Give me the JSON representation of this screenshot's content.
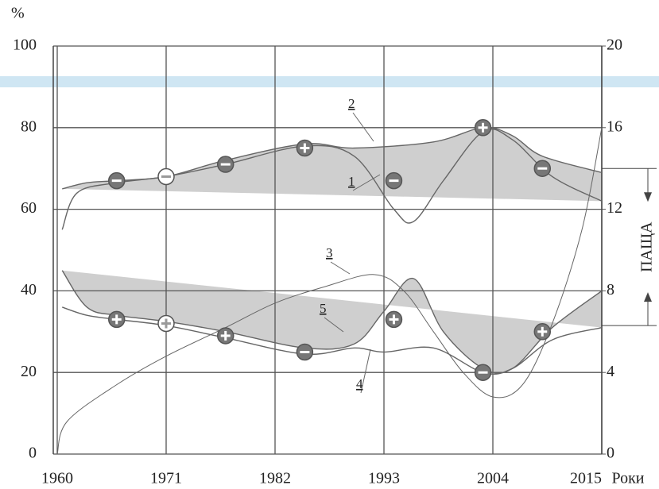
{
  "chart_data": {
    "type": "line",
    "ylabel": "%",
    "xlabel": "Роки",
    "xlim": [
      1960,
      2015
    ],
    "xticks": [
      1960,
      1971,
      1982,
      1993,
      2004,
      2015
    ],
    "ylim": [
      0,
      100
    ],
    "yticks": [
      0,
      20,
      40,
      60,
      80,
      100
    ],
    "y2lim": [
      0,
      20
    ],
    "y2ticks": [
      0,
      4,
      8,
      12,
      16,
      20
    ],
    "grid": true,
    "line_color": "#666666",
    "fill_color": "#cfcfcf",
    "series": [
      {
        "name": "1",
        "x": [
          1960.5,
          1962,
          1966,
          1971,
          1977,
          1985,
          1990,
          1994,
          1996,
          1999,
          2003,
          2006,
          2010,
          2015
        ],
        "values": [
          55,
          64,
          66.5,
          68,
          71,
          75.5,
          73,
          60,
          57,
          67,
          79,
          77,
          68,
          62
        ]
      },
      {
        "name": "2",
        "x": [
          1960.5,
          1963,
          1966,
          1971,
          1977,
          1985,
          1990,
          1998,
          2003,
          2006,
          2009,
          2015
        ],
        "values": [
          65,
          66.5,
          67,
          68,
          72,
          76,
          75,
          76.5,
          80,
          78,
          73,
          69
        ],
        "fill_to": 0
      },
      {
        "name": "3",
        "x": [
          1960,
          1961,
          1966,
          1971,
          1977,
          1982,
          1987,
          1992,
          1995,
          1998,
          2001,
          2004,
          2007,
          2010,
          2013,
          2015
        ],
        "values": [
          0,
          8,
          17,
          24,
          31,
          37,
          41,
          44,
          40,
          30,
          20,
          14,
          17,
          32,
          55,
          80
        ]
      },
      {
        "name": "4",
        "x": [
          1960.5,
          1963,
          1966,
          1971,
          1977,
          1985,
          1990,
          1993,
          1998,
          2003,
          2006,
          2010,
          2015
        ],
        "values": [
          36,
          34,
          33,
          31.5,
          28.5,
          24.5,
          26,
          25,
          26,
          20,
          21,
          28,
          31
        ]
      },
      {
        "name": "5",
        "x": [
          1960.5,
          1963,
          1966,
          1971,
          1977,
          1985,
          1990,
          1993,
          1996,
          1999,
          2003,
          2006,
          2010,
          2015
        ],
        "values": [
          45,
          36,
          34,
          32.5,
          30,
          26,
          27,
          35,
          43,
          30,
          21,
          21,
          31,
          40
        ],
        "fill_to": 3
      }
    ],
    "markers": {
      "x": [
        1966,
        1971,
        1977,
        1985,
        1994,
        2003,
        2009,
        1966,
        1971,
        1977,
        1985,
        1994,
        2003,
        2009
      ],
      "values": [
        67,
        68,
        71,
        75,
        67,
        80,
        70,
        33,
        32,
        29,
        25,
        33,
        20,
        30
      ],
      "signs": [
        "minus",
        "minus",
        "minus",
        "plus",
        "minus",
        "plus",
        "minus",
        "plus",
        "plus",
        "plus",
        "minus",
        "plus",
        "minus",
        "plus"
      ],
      "hollow": [
        false,
        true,
        false,
        false,
        false,
        false,
        false,
        false,
        true,
        false,
        false,
        false,
        false,
        false
      ]
    },
    "bracket": {
      "label": "ПАЩА",
      "range": [
        70,
        31.5
      ]
    }
  }
}
